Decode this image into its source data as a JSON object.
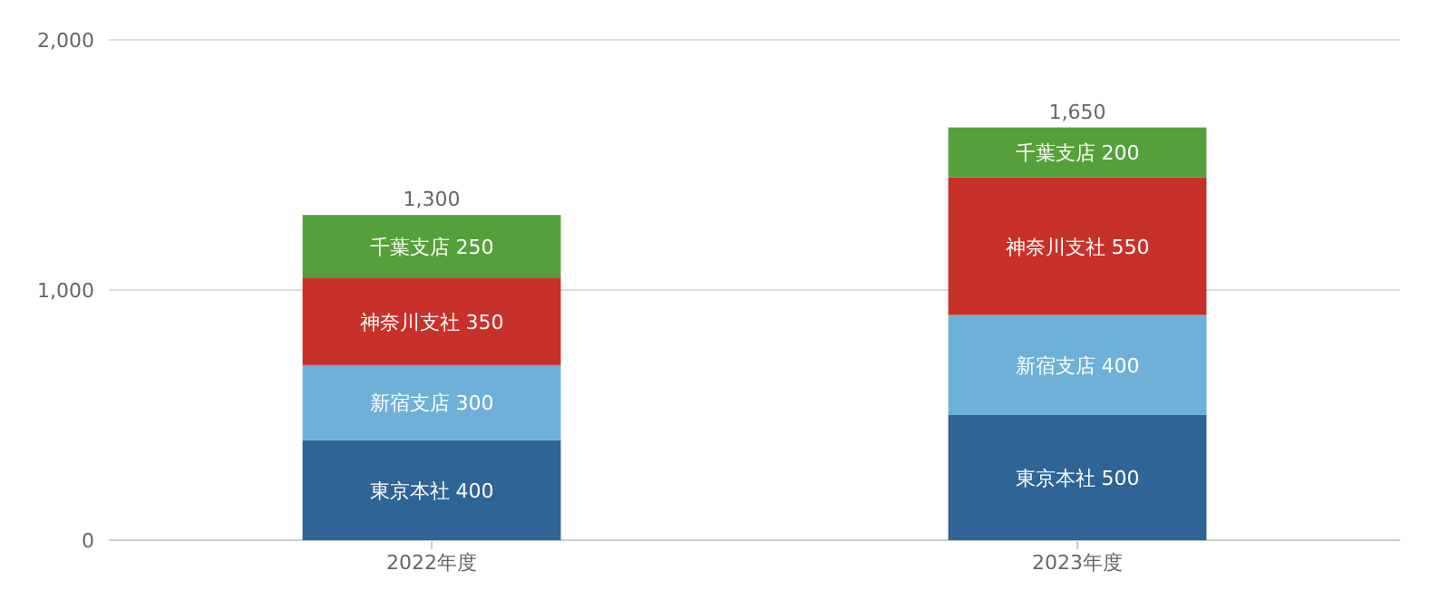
{
  "chart_data": {
    "type": "bar",
    "stacked": true,
    "categories": [
      "2022年度",
      "2023年度"
    ],
    "series": [
      {
        "name": "東京本社",
        "color": "#2e6496",
        "values": [
          400,
          500
        ]
      },
      {
        "name": "新宿支店",
        "color": "#6fb0d8",
        "values": [
          300,
          400
        ]
      },
      {
        "name": "神奈川支社",
        "color": "#c8312a",
        "values": [
          350,
          550
        ]
      },
      {
        "name": "千葉支店",
        "color": "#55a03a",
        "values": [
          250,
          200
        ]
      }
    ],
    "data_labels": true,
    "totals": [
      "1,300",
      "1,650"
    ],
    "ylim": [
      0,
      2000
    ],
    "yticks": [
      0,
      {
        "value": 1000,
        "label": "1,000"
      },
      {
        "value": 2000,
        "label": "2,000"
      }
    ],
    "grid": "y"
  }
}
